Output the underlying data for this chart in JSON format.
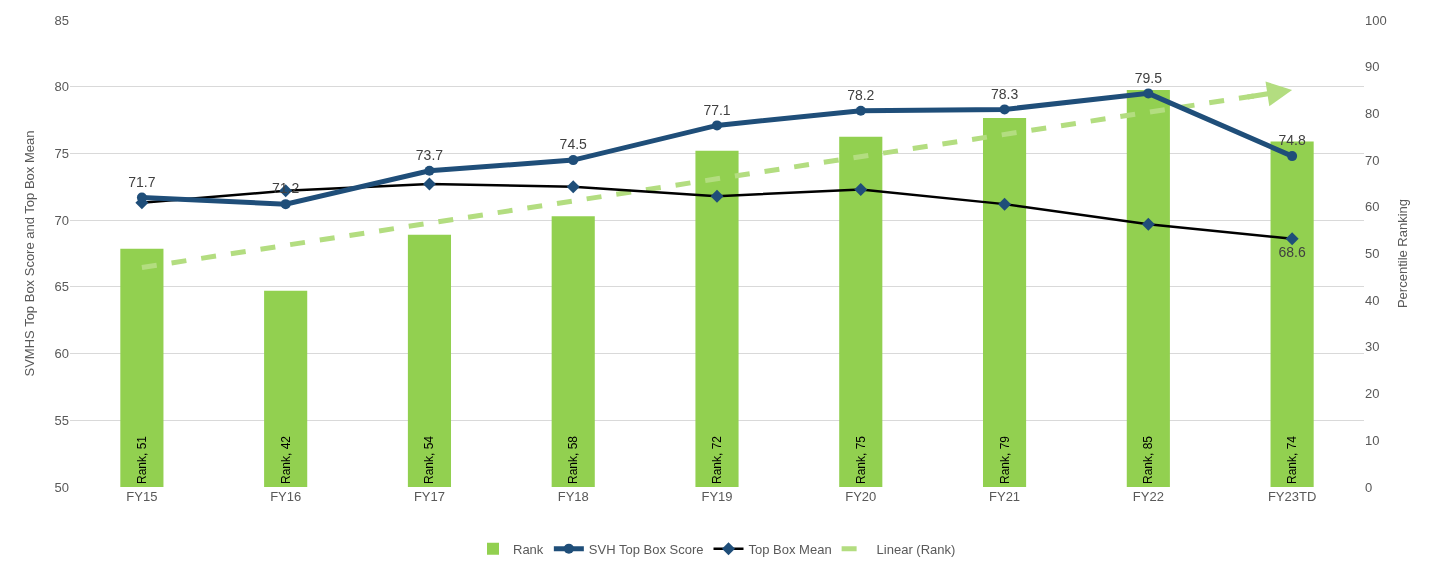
{
  "chart_data": {
    "type": "bar",
    "categories": [
      "FY15",
      "FY16",
      "FY17",
      "FY18",
      "FY19",
      "FY20",
      "FY21",
      "FY22",
      "FY23TD"
    ],
    "ylabel": "SVMHS Top Box Score and Top Box Mean",
    "y2label": "Percentile Ranking",
    "ylim": [
      50,
      85
    ],
    "yticks": [
      50,
      55,
      60,
      65,
      70,
      75,
      80,
      85
    ],
    "y2lim": [
      0,
      100
    ],
    "y2ticks": [
      0,
      10,
      20,
      30,
      40,
      50,
      60,
      70,
      80,
      90,
      100
    ],
    "grid": "y",
    "legend": "bottom",
    "series": [
      {
        "name": "Rank",
        "axis": "y2",
        "color": "#92d050",
        "values": [
          51,
          42,
          54,
          58,
          72,
          75,
          79,
          85,
          74
        ],
        "value_labels": [
          "Rank, 51",
          "Rank, 42",
          "Rank, 54",
          "Rank, 58",
          "Rank, 72",
          "Rank, 75",
          "Rank, 79",
          "Rank, 85",
          "Rank, 74"
        ]
      },
      {
        "name": "SVH Top Box Score",
        "type": "line",
        "color": "#1f4e79",
        "marker": "circle",
        "values": [
          71.7,
          71.2,
          73.7,
          74.5,
          77.1,
          78.2,
          78.3,
          79.5,
          74.8
        ],
        "value_labels": [
          "71.7",
          "71.2",
          "73.7",
          "74.5",
          "77.1",
          "78.2",
          "78.3",
          "79.5",
          "74.8"
        ]
      },
      {
        "name": "Top Box Mean",
        "type": "line",
        "color": "#000000",
        "marker": "diamond",
        "values": [
          71.3,
          72.2,
          72.7,
          72.5,
          71.8,
          72.3,
          71.2,
          69.7,
          68.6
        ],
        "value_labels": [
          null,
          null,
          null,
          null,
          null,
          null,
          null,
          null,
          "68.6"
        ]
      },
      {
        "name": "Linear (Rank)",
        "type": "line",
        "axis": "y2",
        "color": "#b3dd80",
        "line_style": "dashed",
        "x": [
          "FY15",
          "FY23TD"
        ],
        "values": [
          47,
          85
        ]
      }
    ]
  }
}
